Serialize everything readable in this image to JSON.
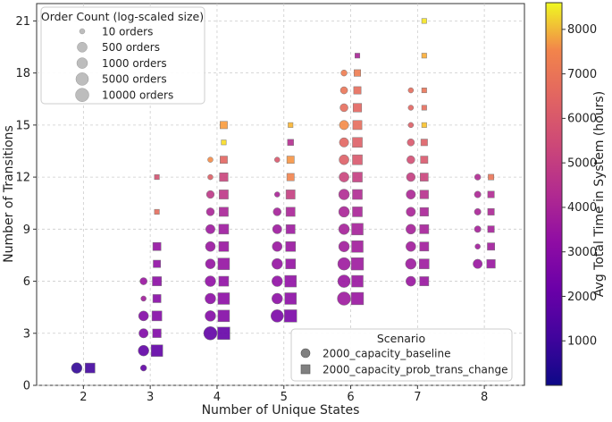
{
  "chart_data": {
    "type": "scatter",
    "xlabel": "Number of Unique States",
    "ylabel": "Number of Transitions",
    "xlim": [
      1.3,
      8.6
    ],
    "ylim": [
      0,
      22
    ],
    "x_ticks": [
      2,
      3,
      4,
      5,
      6,
      7,
      8
    ],
    "y_ticks": [
      0,
      3,
      6,
      9,
      12,
      15,
      18,
      21
    ],
    "grid": true,
    "x_offset_note": "",
    "colorbar": {
      "label": "Avg Total Time in System (hours)",
      "colormap": "plasma",
      "range": [
        0,
        8600
      ],
      "ticks": [
        1000,
        2000,
        3000,
        4000,
        5000,
        6000,
        7000,
        8000
      ]
    },
    "size_legend": {
      "title": "Order Count (log-scaled size)",
      "placement": "upper-left",
      "entries": [
        {
          "label": "10 orders",
          "count": 10
        },
        {
          "label": "500 orders",
          "count": 500
        },
        {
          "label": "1000 orders",
          "count": 1000
        },
        {
          "label": "5000 orders",
          "count": 5000
        },
        {
          "label": "10000 orders",
          "count": 10000
        }
      ]
    },
    "scenario_legend": {
      "title": "Scenario",
      "placement": "lower-right",
      "entries": [
        {
          "label": "2000_capacity_baseline",
          "marker": "circle"
        },
        {
          "label": "2000_capacity_prob_trans_change",
          "marker": "square"
        }
      ]
    },
    "series": [
      {
        "name": "2000_capacity_baseline",
        "marker": "circle",
        "points": [
          {
            "states": 2,
            "transitions": 1,
            "orders": 1000,
            "time": 600
          },
          {
            "states": 3,
            "transitions": 1,
            "orders": 20,
            "time": 1500
          },
          {
            "states": 3,
            "transitions": 2,
            "orders": 1000,
            "time": 1500
          },
          {
            "states": 3,
            "transitions": 3,
            "orders": 300,
            "time": 2200
          },
          {
            "states": 3,
            "transitions": 4,
            "orders": 500,
            "time": 2300
          },
          {
            "states": 3,
            "transitions": 5,
            "orders": 10,
            "time": 3000
          },
          {
            "states": 3,
            "transitions": 6,
            "orders": 50,
            "time": 2800
          },
          {
            "states": 4,
            "transitions": 3,
            "orders": 10000,
            "time": 1500
          },
          {
            "states": 4,
            "transitions": 4,
            "orders": 1000,
            "time": 2300
          },
          {
            "states": 4,
            "transitions": 5,
            "orders": 1000,
            "time": 2500
          },
          {
            "states": 4,
            "transitions": 6,
            "orders": 1000,
            "time": 2600
          },
          {
            "states": 4,
            "transitions": 7,
            "orders": 500,
            "time": 2700
          },
          {
            "states": 4,
            "transitions": 8,
            "orders": 500,
            "time": 2800
          },
          {
            "states": 4,
            "transitions": 9,
            "orders": 300,
            "time": 2900
          },
          {
            "states": 4,
            "transitions": 10,
            "orders": 100,
            "time": 3200
          },
          {
            "states": 4,
            "transitions": 11,
            "orders": 80,
            "time": 3800
          },
          {
            "states": 4,
            "transitions": 12,
            "orders": 10,
            "time": 5000
          },
          {
            "states": 4,
            "transitions": 13,
            "orders": 10,
            "time": 6200
          },
          {
            "states": 5,
            "transitions": 4,
            "orders": 5000,
            "time": 2100
          },
          {
            "states": 5,
            "transitions": 5,
            "orders": 1000,
            "time": 2500
          },
          {
            "states": 5,
            "transitions": 6,
            "orders": 1000,
            "time": 2600
          },
          {
            "states": 5,
            "transitions": 7,
            "orders": 1000,
            "time": 2700
          },
          {
            "states": 5,
            "transitions": 8,
            "orders": 500,
            "time": 2800
          },
          {
            "states": 5,
            "transitions": 9,
            "orders": 300,
            "time": 2900
          },
          {
            "states": 5,
            "transitions": 10,
            "orders": 100,
            "time": 3100
          },
          {
            "states": 5,
            "transitions": 11,
            "orders": 10,
            "time": 3200
          },
          {
            "states": 5,
            "transitions": 13,
            "orders": 10,
            "time": 4800
          },
          {
            "states": 6,
            "transitions": 5,
            "orders": 10000,
            "time": 2900
          },
          {
            "states": 6,
            "transitions": 6,
            "orders": 5000,
            "time": 2800
          },
          {
            "states": 6,
            "transitions": 7,
            "orders": 5000,
            "time": 2900
          },
          {
            "states": 6,
            "transitions": 8,
            "orders": 1000,
            "time": 3000
          },
          {
            "states": 6,
            "transitions": 9,
            "orders": 1000,
            "time": 3100
          },
          {
            "states": 6,
            "transitions": 10,
            "orders": 1000,
            "time": 3200
          },
          {
            "states": 6,
            "transitions": 11,
            "orders": 1000,
            "time": 3400
          },
          {
            "states": 6,
            "transitions": 12,
            "orders": 500,
            "time": 4200
          },
          {
            "states": 6,
            "transitions": 13,
            "orders": 500,
            "time": 5000
          },
          {
            "states": 6,
            "transitions": 14,
            "orders": 300,
            "time": 5200
          },
          {
            "states": 6,
            "transitions": 15,
            "orders": 300,
            "time": 6200
          },
          {
            "states": 6,
            "transitions": 16,
            "orders": 100,
            "time": 5400
          },
          {
            "states": 6,
            "transitions": 17,
            "orders": 50,
            "time": 5600
          },
          {
            "states": 6,
            "transitions": 18,
            "orders": 20,
            "time": 5800
          },
          {
            "states": 7,
            "transitions": 6,
            "orders": 500,
            "time": 2800
          },
          {
            "states": 7,
            "transitions": 7,
            "orders": 1000,
            "time": 2900
          },
          {
            "states": 7,
            "transitions": 8,
            "orders": 500,
            "time": 3000
          },
          {
            "states": 7,
            "transitions": 9,
            "orders": 500,
            "time": 3100
          },
          {
            "states": 7,
            "transitions": 10,
            "orders": 300,
            "time": 3200
          },
          {
            "states": 7,
            "transitions": 11,
            "orders": 300,
            "time": 3300
          },
          {
            "states": 7,
            "transitions": 12,
            "orders": 200,
            "time": 4000
          },
          {
            "states": 7,
            "transitions": 13,
            "orders": 100,
            "time": 4500
          },
          {
            "states": 7,
            "transitions": 14,
            "orders": 50,
            "time": 4800
          },
          {
            "states": 7,
            "transitions": 15,
            "orders": 10,
            "time": 5000
          },
          {
            "states": 7,
            "transitions": 16,
            "orders": 10,
            "time": 5200
          },
          {
            "states": 7,
            "transitions": 17,
            "orders": 10,
            "time": 5400
          },
          {
            "states": 8,
            "transitions": 7,
            "orders": 300,
            "time": 2800
          },
          {
            "states": 8,
            "transitions": 8,
            "orders": 10,
            "time": 3000
          },
          {
            "states": 8,
            "transitions": 9,
            "orders": 30,
            "time": 3100
          },
          {
            "states": 8,
            "transitions": 10,
            "orders": 30,
            "time": 3200
          },
          {
            "states": 8,
            "transitions": 11,
            "orders": 30,
            "time": 3300
          },
          {
            "states": 8,
            "transitions": 12,
            "orders": 20,
            "time": 3400
          }
        ]
      },
      {
        "name": "2000_capacity_prob_trans_change",
        "marker": "square",
        "points": [
          {
            "states": 2,
            "transitions": 1,
            "orders": 1000,
            "time": 900
          },
          {
            "states": 3,
            "transitions": 2,
            "orders": 5000,
            "time": 1500
          },
          {
            "states": 3,
            "transitions": 3,
            "orders": 300,
            "time": 2200
          },
          {
            "states": 3,
            "transitions": 4,
            "orders": 1000,
            "time": 2300
          },
          {
            "states": 3,
            "transitions": 5,
            "orders": 200,
            "time": 2400
          },
          {
            "states": 3,
            "transitions": 6,
            "orders": 500,
            "time": 2500
          },
          {
            "states": 3,
            "transitions": 7,
            "orders": 100,
            "time": 2600
          },
          {
            "states": 3,
            "transitions": 8,
            "orders": 200,
            "time": 2700
          },
          {
            "states": 3,
            "transitions": 10,
            "orders": 10,
            "time": 5400
          },
          {
            "states": 3,
            "transitions": 12,
            "orders": 10,
            "time": 4600
          },
          {
            "states": 4,
            "transitions": 3,
            "orders": 10000,
            "time": 1600
          },
          {
            "states": 4,
            "transitions": 4,
            "orders": 5000,
            "time": 2300
          },
          {
            "states": 4,
            "transitions": 5,
            "orders": 5000,
            "time": 2500
          },
          {
            "states": 4,
            "transitions": 6,
            "orders": 1000,
            "time": 2600
          },
          {
            "states": 4,
            "transitions": 7,
            "orders": 5000,
            "time": 2700
          },
          {
            "states": 4,
            "transitions": 8,
            "orders": 1000,
            "time": 2800
          },
          {
            "states": 4,
            "transitions": 9,
            "orders": 1000,
            "time": 2900
          },
          {
            "states": 4,
            "transitions": 10,
            "orders": 500,
            "time": 3200
          },
          {
            "states": 4,
            "transitions": 11,
            "orders": 500,
            "time": 3800
          },
          {
            "states": 4,
            "transitions": 12,
            "orders": 300,
            "time": 4200
          },
          {
            "states": 4,
            "transitions": 13,
            "orders": 100,
            "time": 5200
          },
          {
            "states": 4,
            "transitions": 14,
            "orders": 10,
            "time": 8000
          },
          {
            "states": 4,
            "transitions": 15,
            "orders": 100,
            "time": 6600
          },
          {
            "states": 5,
            "transitions": 4,
            "orders": 10000,
            "time": 2100
          },
          {
            "states": 5,
            "transitions": 5,
            "orders": 5000,
            "time": 2500
          },
          {
            "states": 5,
            "transitions": 6,
            "orders": 5000,
            "time": 2600
          },
          {
            "states": 5,
            "transitions": 7,
            "orders": 1000,
            "time": 2700
          },
          {
            "states": 5,
            "transitions": 8,
            "orders": 1000,
            "time": 2800
          },
          {
            "states": 5,
            "transitions": 9,
            "orders": 500,
            "time": 2900
          },
          {
            "states": 5,
            "transitions": 10,
            "orders": 500,
            "time": 3200
          },
          {
            "states": 5,
            "transitions": 11,
            "orders": 500,
            "time": 4000
          },
          {
            "states": 5,
            "transitions": 12,
            "orders": 100,
            "time": 6000
          },
          {
            "states": 5,
            "transitions": 13,
            "orders": 100,
            "time": 6400
          },
          {
            "states": 5,
            "transitions": 14,
            "orders": 30,
            "time": 3500
          },
          {
            "states": 5,
            "transitions": 15,
            "orders": 10,
            "time": 7200
          },
          {
            "states": 6,
            "transitions": 5,
            "orders": 10000,
            "time": 2800
          },
          {
            "states": 6,
            "transitions": 6,
            "orders": 5000,
            "time": 2800
          },
          {
            "states": 6,
            "transitions": 7,
            "orders": 10000,
            "time": 2900
          },
          {
            "states": 6,
            "transitions": 8,
            "orders": 5000,
            "time": 3000
          },
          {
            "states": 6,
            "transitions": 9,
            "orders": 5000,
            "time": 3100
          },
          {
            "states": 6,
            "transitions": 10,
            "orders": 1000,
            "time": 3200
          },
          {
            "states": 6,
            "transitions": 11,
            "orders": 1000,
            "time": 3400
          },
          {
            "states": 6,
            "transitions": 12,
            "orders": 1000,
            "time": 4000
          },
          {
            "states": 6,
            "transitions": 13,
            "orders": 1000,
            "time": 4800
          },
          {
            "states": 6,
            "transitions": 14,
            "orders": 1000,
            "time": 5000
          },
          {
            "states": 6,
            "transitions": 15,
            "orders": 500,
            "time": 5400
          },
          {
            "states": 6,
            "transitions": 16,
            "orders": 300,
            "time": 5200
          },
          {
            "states": 6,
            "transitions": 17,
            "orders": 100,
            "time": 5400
          },
          {
            "states": 6,
            "transitions": 18,
            "orders": 50,
            "time": 5800
          },
          {
            "states": 6,
            "transitions": 19,
            "orders": 10,
            "time": 3200
          },
          {
            "states": 7,
            "transitions": 6,
            "orders": 500,
            "time": 2800
          },
          {
            "states": 7,
            "transitions": 7,
            "orders": 1000,
            "time": 2900
          },
          {
            "states": 7,
            "transitions": 8,
            "orders": 500,
            "time": 3000
          },
          {
            "states": 7,
            "transitions": 9,
            "orders": 500,
            "time": 3100
          },
          {
            "states": 7,
            "transitions": 10,
            "orders": 300,
            "time": 3200
          },
          {
            "states": 7,
            "transitions": 11,
            "orders": 300,
            "time": 3600
          },
          {
            "states": 7,
            "transitions": 12,
            "orders": 200,
            "time": 4200
          },
          {
            "states": 7,
            "transitions": 13,
            "orders": 100,
            "time": 4800
          },
          {
            "states": 7,
            "transitions": 14,
            "orders": 50,
            "time": 5000
          },
          {
            "states": 7,
            "transitions": 15,
            "orders": 10,
            "time": 7500
          },
          {
            "states": 7,
            "transitions": 16,
            "orders": 10,
            "time": 5400
          },
          {
            "states": 7,
            "transitions": 17,
            "orders": 10,
            "time": 5600
          },
          {
            "states": 7,
            "transitions": 19,
            "orders": 10,
            "time": 7000
          },
          {
            "states": 7,
            "transitions": 21,
            "orders": 10,
            "time": 8200
          },
          {
            "states": 8,
            "transitions": 7,
            "orders": 300,
            "time": 2800
          },
          {
            "states": 8,
            "transitions": 8,
            "orders": 100,
            "time": 3000
          },
          {
            "states": 8,
            "transitions": 9,
            "orders": 50,
            "time": 3100
          },
          {
            "states": 8,
            "transitions": 10,
            "orders": 50,
            "time": 3300
          },
          {
            "states": 8,
            "transitions": 11,
            "orders": 50,
            "time": 3400
          },
          {
            "states": 8,
            "transitions": 12,
            "orders": 20,
            "time": 5600
          }
        ]
      }
    ]
  }
}
